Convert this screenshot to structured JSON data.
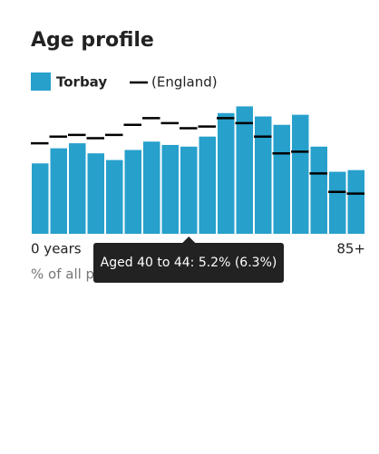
{
  "chart_data": {
    "type": "bar",
    "title": "Age profile",
    "series": [
      {
        "name": "Torbay",
        "color": "#27a0cc",
        "values": [
          4.2,
          5.1,
          5.4,
          4.8,
          4.4,
          5.0,
          5.5,
          5.3,
          5.2,
          5.8,
          7.2,
          7.6,
          7.0,
          6.5,
          7.1,
          5.2,
          3.7,
          3.8
        ]
      },
      {
        "name": "(England)",
        "color": "#000000",
        "values": [
          5.4,
          5.8,
          5.9,
          5.7,
          5.9,
          6.5,
          6.9,
          6.6,
          6.3,
          6.4,
          6.9,
          6.6,
          5.8,
          4.8,
          4.9,
          3.6,
          2.5,
          2.4
        ]
      }
    ],
    "x_start_label": "0 years",
    "x_end_label": "85+",
    "footnote": "% of all people, by age bands",
    "tooltip": "Aged 40 to 44: 5.2% (6.3%)",
    "ylim": [
      0,
      8
    ]
  }
}
